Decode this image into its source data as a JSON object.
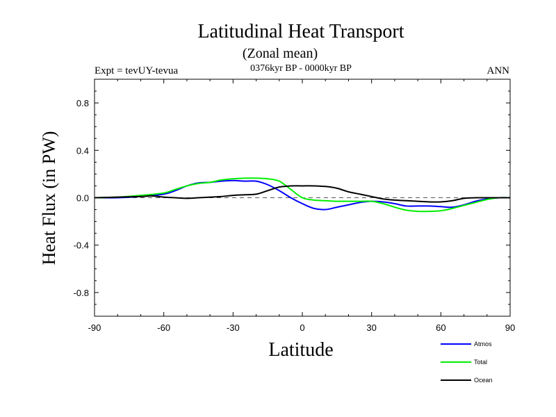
{
  "chart_data": {
    "type": "line",
    "title": "Latitudinal Heat Transport",
    "subtitle": "(Zonal mean)",
    "time_range": "0376kyr BP - 0000kyr BP",
    "experiment": "Expt = tevUY-tevua",
    "season": "ANN",
    "xlabel": "Latitude",
    "ylabel": "Heat Flux (in PW)",
    "xlim": [
      -90,
      90
    ],
    "ylim": [
      -1.0,
      1.0
    ],
    "xticks": [
      -90,
      -60,
      -30,
      0,
      30,
      60,
      90
    ],
    "xtick_labels": [
      "-90",
      "-60",
      "-30",
      "0",
      "30",
      "60",
      "90"
    ],
    "yticks": [
      -0.8,
      -0.4,
      0.0,
      0.4,
      0.8
    ],
    "ytick_labels": [
      "-0.8",
      "-0.4",
      "0.0",
      "0.4",
      "0.8"
    ],
    "zero_line": "dashed",
    "grid": false,
    "legend_position": "bottom-right, outside plot",
    "series": [
      {
        "name": "Atmos",
        "color": "#0000ff",
        "x": [
          -90,
          -80,
          -70,
          -60,
          -55,
          -50,
          -45,
          -40,
          -35,
          -30,
          -25,
          -20,
          -15,
          -10,
          -5,
          0,
          5,
          10,
          15,
          20,
          25,
          30,
          35,
          40,
          45,
          50,
          55,
          60,
          65,
          70,
          75,
          80,
          85,
          90
        ],
        "y": [
          0.0,
          0.0,
          0.01,
          0.03,
          0.06,
          0.1,
          0.125,
          0.13,
          0.14,
          0.145,
          0.14,
          0.14,
          0.11,
          0.06,
          0.0,
          -0.05,
          -0.09,
          -0.1,
          -0.08,
          -0.06,
          -0.04,
          -0.03,
          -0.035,
          -0.05,
          -0.07,
          -0.07,
          -0.07,
          -0.075,
          -0.08,
          -0.06,
          -0.03,
          -0.01,
          0.0,
          0.0
        ]
      },
      {
        "name": "Total",
        "color": "#00ee00",
        "x": [
          -90,
          -80,
          -70,
          -60,
          -55,
          -50,
          -45,
          -40,
          -35,
          -30,
          -25,
          -20,
          -15,
          -10,
          -5,
          0,
          5,
          10,
          15,
          20,
          25,
          30,
          35,
          40,
          45,
          50,
          55,
          60,
          65,
          70,
          75,
          80,
          85,
          90
        ],
        "y": [
          0.0,
          0.005,
          0.02,
          0.04,
          0.07,
          0.1,
          0.12,
          0.13,
          0.15,
          0.16,
          0.165,
          0.165,
          0.16,
          0.14,
          0.07,
          0.0,
          -0.02,
          -0.025,
          -0.03,
          -0.03,
          -0.03,
          -0.03,
          -0.05,
          -0.08,
          -0.105,
          -0.115,
          -0.115,
          -0.11,
          -0.09,
          -0.065,
          -0.04,
          -0.015,
          0.0,
          0.0
        ]
      },
      {
        "name": "Ocean",
        "color": "#000000",
        "x": [
          -90,
          -80,
          -70,
          -65,
          -60,
          -55,
          -50,
          -45,
          -40,
          -35,
          -30,
          -25,
          -20,
          -15,
          -10,
          -5,
          0,
          5,
          10,
          15,
          20,
          25,
          30,
          35,
          40,
          45,
          50,
          55,
          60,
          65,
          70,
          75,
          80,
          85,
          90
        ],
        "y": [
          0.0,
          0.005,
          0.01,
          0.015,
          0.005,
          0.0,
          -0.005,
          0.0,
          0.005,
          0.01,
          0.02,
          0.025,
          0.03,
          0.06,
          0.09,
          0.1,
          0.1,
          0.1,
          0.095,
          0.08,
          0.05,
          0.03,
          0.01,
          -0.01,
          -0.02,
          -0.025,
          -0.03,
          -0.035,
          -0.035,
          -0.025,
          -0.005,
          0.0,
          0.0,
          0.0,
          0.0
        ]
      }
    ]
  }
}
